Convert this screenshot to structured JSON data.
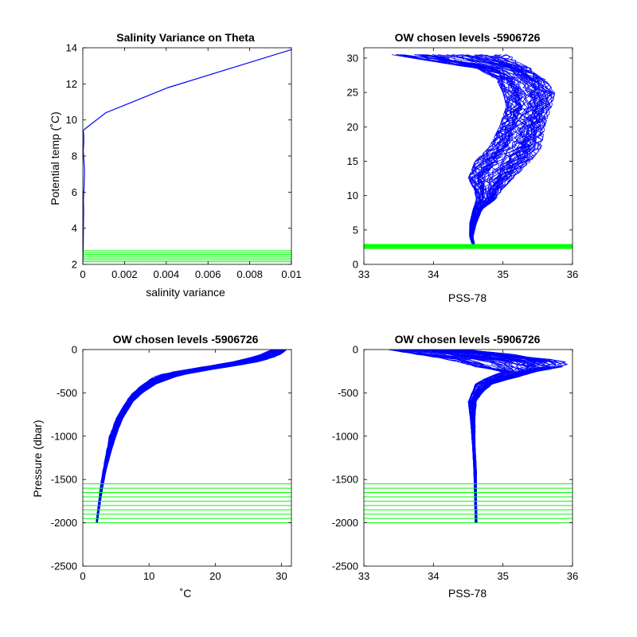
{
  "figure": {
    "colors": {
      "profile": "#0000ff",
      "level": "#00ff00",
      "axis": "#000000",
      "background": "#ffffff"
    }
  },
  "chart_data": [
    {
      "id": "p1",
      "type": "line",
      "title": "Salinity Variance on Theta",
      "xlabel": "salinity variance",
      "ylabel": "Potential temp (˚C)",
      "xlim": [
        0,
        0.01
      ],
      "ylim": [
        2,
        14
      ],
      "xticks": [
        0,
        0.002,
        0.004,
        0.006,
        0.008,
        0.01
      ],
      "xtick_labels": [
        "0",
        "0.002",
        "0.004",
        "0.006",
        "0.008",
        "0.01"
      ],
      "yticks": [
        2,
        4,
        6,
        8,
        10,
        12,
        14
      ],
      "ytick_labels": [
        "2",
        "4",
        "6",
        "8",
        "10",
        "12",
        "14"
      ],
      "grid": false,
      "series": [
        {
          "color": "#0000ff",
          "x": [
            1e-05,
            2e-05,
            3e-05,
            4e-05,
            3e-05,
            6e-05,
            8e-05,
            5e-05,
            2e-05,
            5e-05,
            4e-05,
            2e-05,
            0.0001,
            0.0011,
            0.0041,
            0.01
          ],
          "y": [
            2.2,
            3.0,
            4.0,
            5.0,
            5.6,
            6.3,
            7.2,
            7.8,
            8.3,
            8.8,
            9.2,
            9.4,
            9.5,
            10.4,
            11.8,
            13.9
          ]
        }
      ],
      "hlines": {
        "color": "#0000ff",
        "color_override": "#00ff00",
        "values": [
          2.15,
          2.25,
          2.35,
          2.45,
          2.55,
          2.65,
          2.75
        ]
      }
    },
    {
      "id": "p2",
      "type": "line",
      "title": "OW chosen levels -5906726",
      "xlabel": "PSS-78",
      "ylabel": "",
      "xlim": [
        33,
        36
      ],
      "ylim": [
        0,
        31.5
      ],
      "xticks": [
        33,
        34,
        35,
        36
      ],
      "xtick_labels": [
        "33",
        "34",
        "35",
        "36"
      ],
      "yticks": [
        0,
        5,
        10,
        15,
        20,
        25,
        30
      ],
      "ytick_labels": [
        "0",
        "5",
        "10",
        "15",
        "20",
        "25",
        "30"
      ],
      "grid": false,
      "profile_envelope": {
        "y": [
          2.5,
          4.0,
          6.0,
          8.0,
          9.5,
          11.0,
          12.5,
          15.0,
          17.0,
          20.0,
          23.0,
          25.0,
          27.0,
          28.5,
          29.5,
          30.5
        ],
        "xmin": [
          34.57,
          34.52,
          34.52,
          34.57,
          34.62,
          34.58,
          34.5,
          34.6,
          34.8,
          34.95,
          35.05,
          35.0,
          34.9,
          34.6,
          34.0,
          33.4
        ],
        "xmax": [
          34.6,
          34.57,
          34.62,
          34.7,
          34.9,
          35.0,
          35.15,
          35.4,
          35.55,
          35.6,
          35.7,
          35.75,
          35.6,
          35.4,
          35.2,
          35.1
        ],
        "count": 60,
        "color": "#0000ff"
      },
      "hlines": {
        "color_override": "#00ff00",
        "values": [
          2.3,
          2.4,
          2.5,
          2.6,
          2.7,
          2.8,
          2.9
        ]
      }
    },
    {
      "id": "p3",
      "type": "line",
      "title": "OW chosen levels -5906726",
      "xlabel": "˚C",
      "ylabel": "Pressure (dbar)",
      "xlim": [
        0,
        31.5
      ],
      "ylim": [
        -2500,
        0
      ],
      "xticks": [
        0,
        10,
        20,
        30
      ],
      "xtick_labels": [
        "0",
        "10",
        "20",
        "30"
      ],
      "yticks": [
        -2500,
        -2000,
        -1500,
        -1000,
        -500,
        0
      ],
      "ytick_labels": [
        "-2500",
        "-2000",
        "-1500",
        "-1000",
        "-500",
        "0"
      ],
      "grid": false,
      "profile_envelope": {
        "y": [
          -2000,
          -1800,
          -1600,
          -1400,
          -1200,
          -1000,
          -800,
          -600,
          -500,
          -400,
          -300,
          -250,
          -200,
          -150,
          -100,
          -50,
          0
        ],
        "xmin": [
          2.0,
          2.3,
          2.6,
          3.0,
          3.5,
          4.0,
          5.0,
          6.5,
          7.5,
          9.0,
          11.0,
          14.0,
          18.0,
          22.0,
          25.0,
          27.0,
          28.5
        ],
        "xmax": [
          2.2,
          2.6,
          3.0,
          3.5,
          4.2,
          5.0,
          6.0,
          7.6,
          9.0,
          11.0,
          14.5,
          18.0,
          22.0,
          26.0,
          28.5,
          30.0,
          30.8
        ],
        "count": 60,
        "color": "#0000ff"
      },
      "hlines": {
        "color_override": "#00ff00",
        "values": [
          -2000,
          -1950,
          -1900,
          -1850,
          -1800,
          -1750,
          -1700,
          -1650,
          -1600,
          -1550
        ]
      }
    },
    {
      "id": "p4",
      "type": "line",
      "title": "OW chosen levels -5906726",
      "xlabel": "PSS-78",
      "ylabel": "",
      "xlim": [
        33,
        36
      ],
      "ylim": [
        -2500,
        0
      ],
      "xticks": [
        33,
        34,
        35,
        36
      ],
      "xtick_labels": [
        "33",
        "34",
        "35",
        "36"
      ],
      "yticks": [
        -2500,
        -2000,
        -1500,
        -1000,
        -500,
        0
      ],
      "ytick_labels": [
        "-2500",
        "-2000",
        "-1500",
        "-1000",
        "-500",
        "0"
      ],
      "grid": false,
      "profile_envelope": {
        "y": [
          -2000,
          -1700,
          -1400,
          -1100,
          -800,
          -600,
          -500,
          -400,
          -350,
          -300,
          -250,
          -200,
          -150,
          -100,
          -50,
          0
        ],
        "xmin": [
          34.6,
          34.59,
          34.58,
          34.56,
          34.53,
          34.5,
          34.55,
          34.6,
          34.7,
          34.85,
          35.0,
          34.6,
          34.4,
          34.1,
          33.7,
          33.35
        ],
        "xmax": [
          34.63,
          34.62,
          34.62,
          34.6,
          34.6,
          34.62,
          34.7,
          34.85,
          35.05,
          35.3,
          35.5,
          35.9,
          35.95,
          35.6,
          35.1,
          34.5
        ],
        "count": 60,
        "color": "#0000ff"
      },
      "hlines": {
        "color_override": "#00ff00",
        "values": [
          -2000,
          -1950,
          -1900,
          -1850,
          -1800,
          -1750,
          -1700,
          -1650,
          -1600,
          -1550
        ]
      }
    }
  ]
}
